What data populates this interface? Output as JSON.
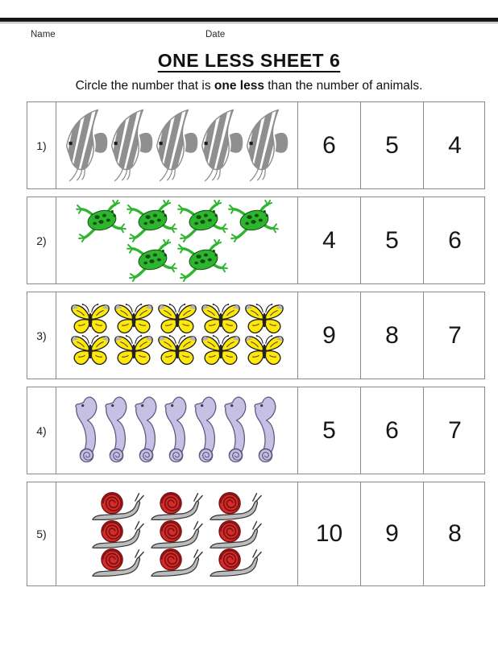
{
  "header": {
    "name_label": "Name",
    "date_label": "Date",
    "title": "ONE LESS SHEET 6",
    "instruction_prefix": "Circle the number that is ",
    "instruction_bold": "one less",
    "instruction_suffix": " than the number of animals."
  },
  "rows": [
    {
      "label": "1)",
      "animal": "angelfish",
      "count": 5,
      "arrangement": [
        5
      ],
      "choices": [
        "6",
        "5",
        "4"
      ]
    },
    {
      "label": "2)",
      "animal": "frog",
      "count": 6,
      "arrangement": [
        4,
        2
      ],
      "choices": [
        "4",
        "5",
        "6"
      ]
    },
    {
      "label": "3)",
      "animal": "butterfly",
      "count": 10,
      "arrangement": [
        5,
        5
      ],
      "choices": [
        "9",
        "8",
        "7"
      ]
    },
    {
      "label": "4)",
      "animal": "seahorse",
      "count": 7,
      "arrangement": [
        7
      ],
      "choices": [
        "5",
        "6",
        "7"
      ]
    },
    {
      "label": "5)",
      "animal": "snail",
      "count": 9,
      "arrangement": [
        3,
        3,
        3
      ],
      "choices": [
        "10",
        "9",
        "8"
      ]
    }
  ],
  "colors": {
    "text": "#1a1a1a",
    "table_border": "#8a8a8a",
    "fish_gray": "#8f8f8f",
    "fish_outline": "#8a8a8a",
    "frog_green": "#2db52d",
    "frog_dark": "#134d13",
    "butterfly_yellow": "#ffe70a",
    "butterfly_outline": "#1a1a1a",
    "butterfly_gray": "#b5b5b5",
    "seahorse_purple": "#c7c0e5",
    "seahorse_outline": "#5d577d",
    "snail_red": "#d62b2b",
    "snail_dark": "#7a1111",
    "snail_body": "#bcbcbc"
  }
}
